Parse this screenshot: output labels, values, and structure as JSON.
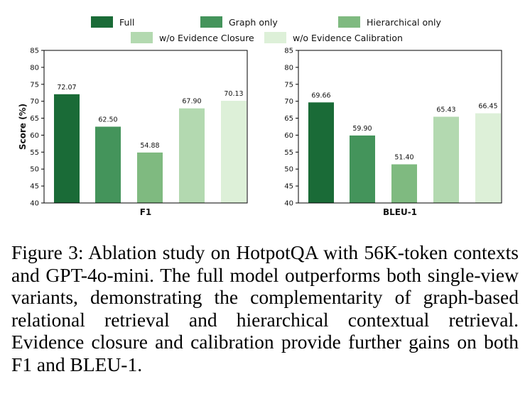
{
  "chart_data": [
    {
      "type": "bar",
      "categories": [
        "Full",
        "Graph only",
        "Hierarchical only",
        "w/o Evidence Closure",
        "w/o Evidence Calibration"
      ],
      "values": [
        72.07,
        62.5,
        54.88,
        67.9,
        70.13
      ],
      "value_labels": [
        "72.07",
        "62.50",
        "54.88",
        "67.90",
        "70.13"
      ],
      "xlabel": "F1",
      "ylabel": "Score (%)",
      "ylim": [
        40,
        85
      ],
      "yticks": [
        "40",
        "45",
        "50",
        "55",
        "60",
        "65",
        "70",
        "75",
        "80",
        "85"
      ],
      "grid": false,
      "legend": "top"
    },
    {
      "type": "bar",
      "categories": [
        "Full",
        "Graph only",
        "Hierarchical only",
        "w/o Evidence Closure",
        "w/o Evidence Calibration"
      ],
      "values": [
        69.66,
        59.9,
        51.4,
        65.43,
        66.45
      ],
      "value_labels": [
        "69.66",
        "59.90",
        "51.40",
        "65.43",
        "66.45"
      ],
      "xlabel": "BLEU-1",
      "ylabel": "",
      "ylim": [
        40,
        85
      ],
      "yticks": [
        "40",
        "45",
        "50",
        "55",
        "60",
        "65",
        "70",
        "75",
        "80",
        "85"
      ],
      "grid": false,
      "legend": "top"
    }
  ],
  "legend": {
    "entries": [
      {
        "label": "Full",
        "color": "#1a6b37"
      },
      {
        "label": "Graph only",
        "color": "#44945b"
      },
      {
        "label": "Hierarchical only",
        "color": "#7fba80"
      },
      {
        "label": "w/o Evidence Closure",
        "color": "#b3d9b0"
      },
      {
        "label": "w/o Evidence Calibration",
        "color": "#ddf0d8"
      }
    ]
  },
  "colors": [
    "#1a6b37",
    "#44945b",
    "#7fba80",
    "#b3d9b0",
    "#ddf0d8"
  ],
  "caption": "Figure 3: Ablation study on HotpotQA with 56K-token contexts and GPT-4o-mini. The full model outperforms both single-view variants, demonstrating the complementarity of graph-based relational retrieval and hierarchical contextual retrieval. Evidence closure and calibration provide further gains on both F1 and BLEU-1."
}
